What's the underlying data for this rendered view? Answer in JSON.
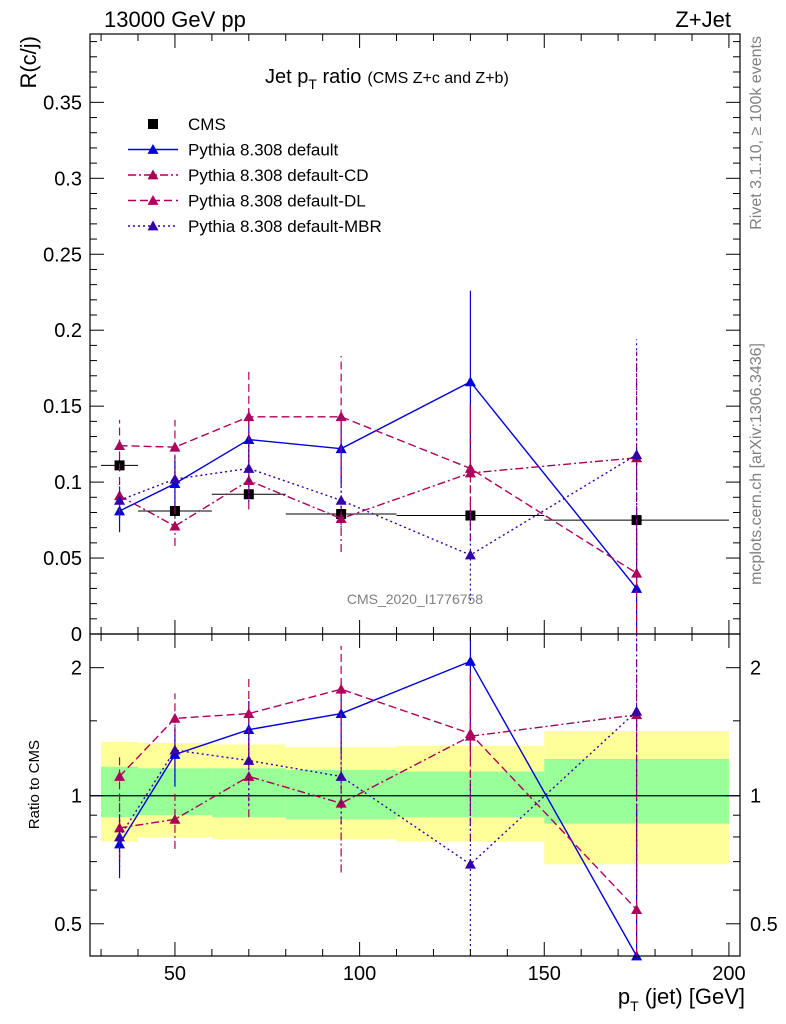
{
  "header": {
    "left": "13000 GeV pp",
    "right": "Z+Jet"
  },
  "side_labels": {
    "rivet": "Rivet 3.1.10, ≥ 100k events",
    "mcplots": "mcplots.cern.ch [arXiv:1306.3436]"
  },
  "watermark": "CMS_2020_I1776758",
  "chart_data": {
    "type": "line",
    "title": {
      "main": "Jet p",
      "sub": "T",
      "rest": " ratio",
      "small": "(CMS  Z+c and Z+b)"
    },
    "xlabel": {
      "main": "p",
      "sub": "T",
      "rest": " (jet) [GeV]"
    },
    "xlim": [
      27,
      203
    ],
    "x_ticks": [
      50,
      100,
      150,
      200
    ],
    "main": {
      "ylabel": "R(c/j)",
      "ylim": [
        0,
        0.395
      ],
      "y_ticks": [
        0,
        0.05,
        0.1,
        0.15,
        0.2,
        0.25,
        0.3,
        0.35
      ],
      "y_tick_labels": [
        "0",
        "0.05",
        "0.1",
        "0.15",
        "0.2",
        "0.25",
        "0.3",
        "0.35"
      ]
    },
    "ratio": {
      "ylabel": "Ratio to CMS",
      "ylim": [
        0.42,
        2.4
      ],
      "log": true,
      "y_ticks": [
        0.5,
        1,
        2
      ],
      "y_tick_labels": [
        "0.5",
        "1",
        "2"
      ],
      "bands": [
        {
          "x0": 30,
          "x1": 40,
          "inner": [
            0.89,
            1.17
          ],
          "outer": [
            0.78,
            1.34
          ]
        },
        {
          "x0": 40,
          "x1": 60,
          "inner": [
            0.9,
            1.16
          ],
          "outer": [
            0.8,
            1.33
          ]
        },
        {
          "x0": 60,
          "x1": 80,
          "inner": [
            0.89,
            1.16
          ],
          "outer": [
            0.79,
            1.32
          ]
        },
        {
          "x0": 80,
          "x1": 110,
          "inner": [
            0.88,
            1.15
          ],
          "outer": [
            0.79,
            1.3
          ]
        },
        {
          "x0": 110,
          "x1": 150,
          "inner": [
            0.89,
            1.14
          ],
          "outer": [
            0.78,
            1.31
          ]
        },
        {
          "x0": 150,
          "x1": 200,
          "inner": [
            0.86,
            1.22
          ],
          "outer": [
            0.69,
            1.42
          ]
        }
      ]
    },
    "legend": {
      "position": "top-left"
    },
    "series": [
      {
        "name": "CMS",
        "style": "data",
        "color": "#000000",
        "x": [
          35,
          50,
          70,
          95,
          130,
          175
        ],
        "y": [
          0.111,
          0.081,
          0.092,
          0.079,
          0.078,
          0.075
        ],
        "xerr": [
          5,
          10,
          10,
          15,
          20,
          25
        ],
        "yerr": [
          0.004,
          0.004,
          0.003,
          0.004,
          0.003,
          0.003
        ],
        "ratio": [
          1,
          1,
          1,
          1,
          1,
          1
        ]
      },
      {
        "name": "Pythia 8.308 default",
        "style": "solid",
        "color": "#0000dd",
        "x": [
          35,
          50,
          70,
          95,
          130,
          175
        ],
        "y": [
          0.081,
          0.099,
          0.128,
          0.122,
          0.166,
          0.03
        ],
        "yerr": [
          0.014,
          0.015,
          0.02,
          0.024,
          0.06,
          0.038
        ],
        "ratio": [
          0.77,
          1.25,
          1.43,
          1.56,
          2.07,
          0.42
        ],
        "ratio_err": [
          0.13,
          0.2,
          0.24,
          0.3,
          0.8,
          0.5
        ]
      },
      {
        "name": "Pythia 8.308 default-CD",
        "style": "dashdot",
        "color": "#aa0055",
        "x": [
          35,
          50,
          70,
          95,
          130,
          175
        ],
        "y": [
          0.091,
          0.071,
          0.101,
          0.076,
          0.106,
          0.116
        ],
        "yerr": [
          0.014,
          0.013,
          0.019,
          0.022,
          0.045,
          0.07
        ],
        "ratio": [
          0.84,
          0.88,
          1.11,
          0.96,
          1.38,
          1.55
        ],
        "ratio_err": [
          0.13,
          0.13,
          0.22,
          0.3,
          0.6,
          0.9
        ]
      },
      {
        "name": "Pythia 8.308 default-DL",
        "style": "dashed",
        "color": "#b0005e",
        "x": [
          35,
          50,
          70,
          95,
          130,
          175
        ],
        "y": [
          0.124,
          0.123,
          0.143,
          0.143,
          0.109,
          0.04
        ],
        "yerr": [
          0.017,
          0.018,
          0.031,
          0.04,
          0.04,
          0.08
        ],
        "ratio": [
          1.11,
          1.52,
          1.56,
          1.78,
          1.4,
          0.54
        ],
        "ratio_err": [
          0.14,
          0.22,
          0.34,
          0.47,
          0.55,
          1.0
        ]
      },
      {
        "name": "Pythia 8.308 default-MBR",
        "style": "dotted",
        "color": "#3300aa",
        "x": [
          35,
          50,
          70,
          95,
          130,
          175
        ],
        "y": [
          0.088,
          0.102,
          0.109,
          0.088,
          0.052,
          0.118
        ],
        "yerr": [
          0.012,
          0.016,
          0.022,
          0.018,
          0.03,
          0.076
        ],
        "ratio": [
          0.8,
          1.28,
          1.21,
          1.11,
          0.69,
          1.58
        ],
        "ratio_err": [
          0.12,
          0.2,
          0.26,
          0.25,
          0.4,
          1.0
        ]
      }
    ]
  }
}
